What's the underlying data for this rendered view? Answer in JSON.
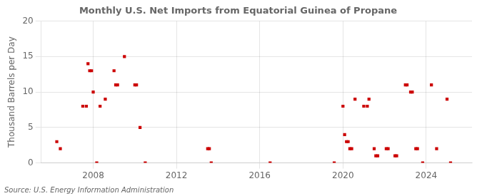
{
  "chart_data": {
    "type": "scatter",
    "title": "Monthly U.S. Net Imports from Equatorial Guinea of Propane",
    "ylabel": "Thousand Barrels per Day",
    "annotations": [
      "Source: U.S. Energy Information Administration"
    ],
    "x": [
      2006.25,
      2006.42,
      2007.5,
      2007.67,
      2007.75,
      2007.83,
      2007.92,
      2008.0,
      2008.17,
      2008.33,
      2008.58,
      2009.0,
      2009.08,
      2009.17,
      2009.5,
      2010.0,
      2010.08,
      2010.25,
      2010.5,
      2013.5,
      2013.58,
      2013.67,
      2016.5,
      2019.58,
      2020.0,
      2020.08,
      2020.17,
      2020.25,
      2020.33,
      2020.42,
      2020.58,
      2021.0,
      2021.17,
      2021.25,
      2021.5,
      2021.58,
      2021.67,
      2022.08,
      2022.17,
      2022.5,
      2022.58,
      2023.0,
      2023.08,
      2023.25,
      2023.33,
      2023.5,
      2023.58,
      2023.83,
      2024.25,
      2024.5,
      2025.0,
      2025.17
    ],
    "values": [
      3,
      2,
      8,
      8,
      14,
      13,
      13,
      10,
      0,
      8,
      9,
      13,
      11,
      11,
      15,
      11,
      11,
      5,
      0,
      2,
      2,
      0,
      0,
      0,
      8,
      4,
      3,
      3,
      2,
      2,
      9,
      8,
      8,
      9,
      2,
      1,
      1,
      2,
      2,
      1,
      1,
      11,
      11,
      10,
      10,
      2,
      2,
      0,
      11,
      2,
      9,
      0
    ],
    "color": "#cc0000",
    "marker": "square",
    "xlim": [
      2005.5,
      2026.2
    ],
    "xticks": [
      2008,
      2012,
      2016,
      2020,
      2024
    ],
    "ylim": [
      0,
      20
    ],
    "yticks": [
      0,
      5,
      10,
      15,
      20
    ],
    "grid": true
  }
}
